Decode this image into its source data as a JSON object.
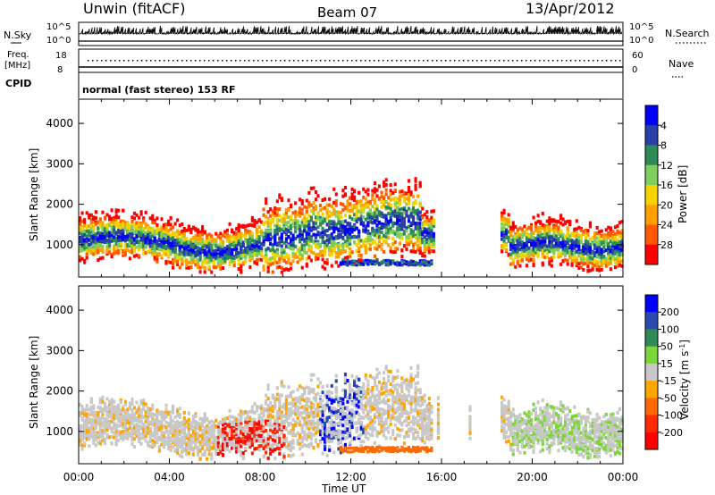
{
  "header": {
    "title": "Unwin (fitACF)",
    "beam": "Beam 07",
    "date": "13/Apr/2012"
  },
  "top_panels": {
    "nsky_label": "N.Sky",
    "nsearch_label": "N.Search",
    "count_ticks_left": [
      "10^5",
      "10^0"
    ],
    "count_ticks_right": [
      "10^5",
      "10^0"
    ],
    "freq_label_1": "Freq.",
    "freq_label_2": "[MHz]",
    "freq_ticks": [
      "18",
      "8"
    ],
    "nave_label": "Nave",
    "nave_ticks": [
      "60",
      "0"
    ],
    "cpid_label": "CPID",
    "cpid_text": "normal (fast stereo) 153 RF"
  },
  "chart_data": [
    {
      "type": "heatmap",
      "name": "power",
      "ylabel": "Slant Range [km]",
      "ylim": [
        200,
        4600
      ],
      "yticks": [
        "1000",
        "2000",
        "3000",
        "4000"
      ],
      "xlim_hours": [
        0,
        24
      ],
      "colorbar_label": "Power [dB]",
      "colorbar_ticks": [
        "4",
        "8",
        "12",
        "16",
        "20",
        "24",
        "28"
      ],
      "colorbar_colors": [
        "#0000ff",
        "#2a3fa8",
        "#2e8b57",
        "#7fcf5f",
        "#f5d200",
        "#ffa000",
        "#ff5a00",
        "#ff0000"
      ]
    },
    {
      "type": "heatmap",
      "name": "velocity",
      "ylabel": "Slant Range [km]",
      "ylim": [
        200,
        4600
      ],
      "yticks": [
        "1000",
        "2000",
        "3000",
        "4000"
      ],
      "xlabel": "Time UT",
      "xticks": [
        "00:00",
        "04:00",
        "08:00",
        "12:00",
        "16:00",
        "20:00",
        "00:00"
      ],
      "colorbar_label_main": "Velocity [m s",
      "colorbar_label_sup": "-1",
      "colorbar_label_end": "]",
      "colorbar_ticks": [
        "200",
        "100",
        "50",
        "15",
        "-15",
        "-50",
        "-100",
        "-200"
      ],
      "colorbar_colors": [
        "#0000ff",
        "#2a4ab0",
        "#2e8b57",
        "#7cd63a",
        "#c8c8c8",
        "#ffa500",
        "#ff6a00",
        "#ff2a00",
        "#ff0000"
      ]
    }
  ]
}
